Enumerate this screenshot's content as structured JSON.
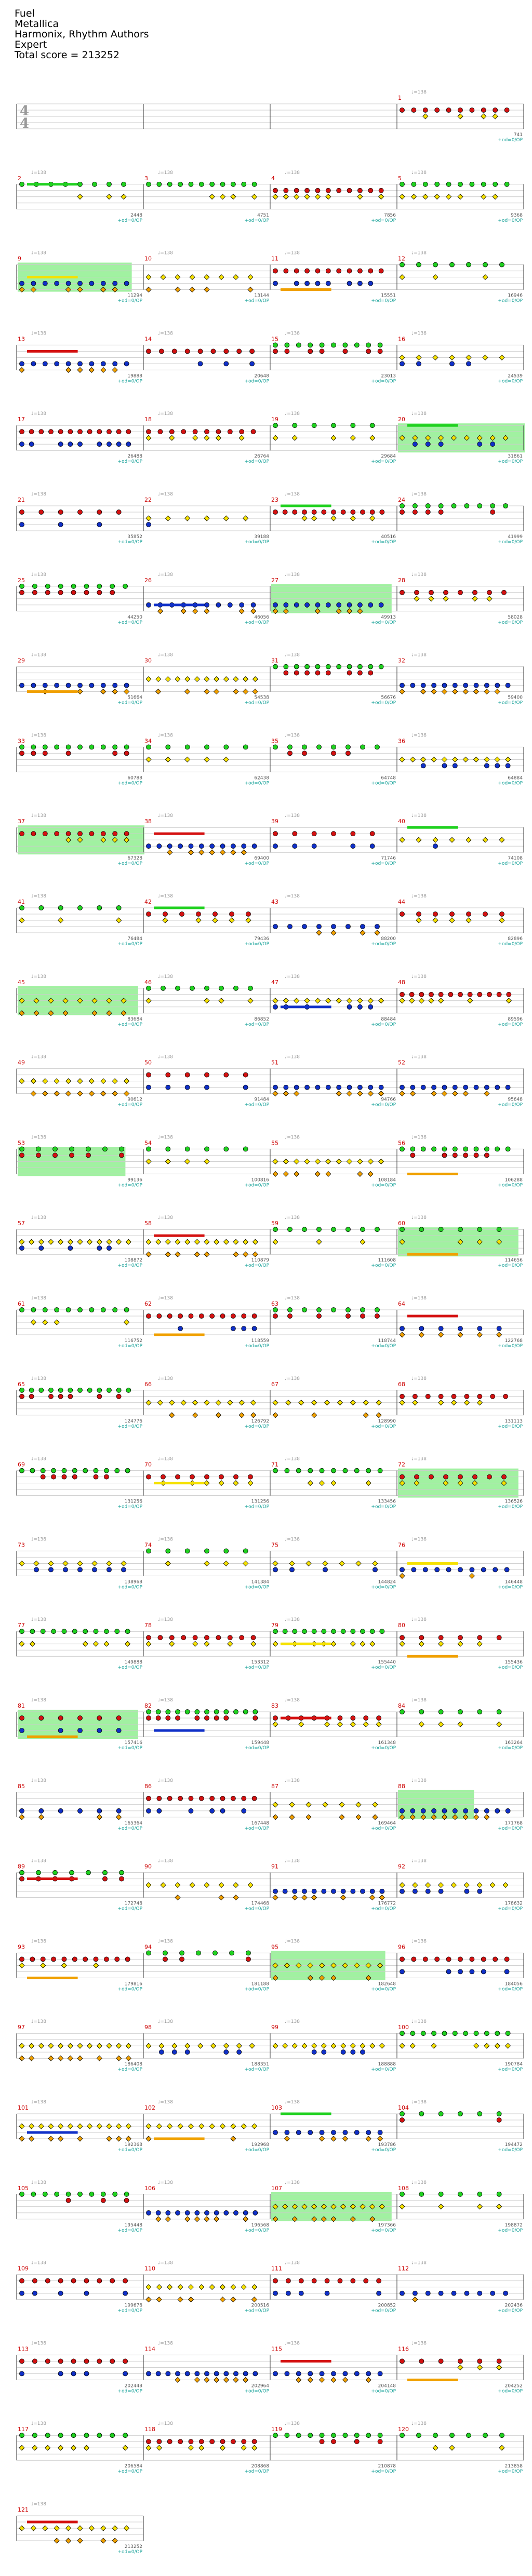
{
  "header": {
    "title": "Fuel",
    "artist": "Metallica",
    "charters": "Harmonix, Rhythm Authors",
    "difficulty": "Expert",
    "total_score": "Total score = 213252"
  },
  "labels": {
    "od_label": "+od=0/OP",
    "time_signature": [
      "4",
      "4"
    ],
    "tempo_prefix": "♩="
  },
  "colors": {
    "green": "#1fd11f",
    "red": "#d41111",
    "yellow": "#f5e100",
    "blue": "#1030c8",
    "orange": "#f0a000",
    "overdrive_fill": "#90ee90",
    "lane_line": "#cccccc",
    "bar_line": "#333333"
  },
  "tempo": "♩=138",
  "chart_data": {
    "type": "table",
    "rows": [
      {
        "measures": [
          null,
          null,
          null,
          "1"
        ],
        "scores": [
          "",
          "",
          "",
          "741"
        ],
        "od": [
          false,
          false,
          false,
          true
        ],
        "tempo": [
          "138",
          "138",
          "138",
          "138"
        ],
        "overdrive": []
      },
      {
        "measures": [
          "2",
          "3",
          "4",
          "5"
        ],
        "scores": [
          "2448",
          "4751",
          "7856",
          "9368"
        ],
        "od": [
          true,
          true,
          true,
          true
        ],
        "tempo": [
          "138",
          "138",
          "138",
          "138"
        ],
        "overdrive": []
      },
      {
        "measures": [
          "9",
          "10",
          "11",
          "12"
        ],
        "scores": [
          "11294",
          "13144",
          "15551",
          "16946"
        ],
        "od": [
          true,
          true,
          true,
          true
        ],
        "tempo": [
          "138",
          "138",
          "138",
          "138"
        ],
        "overdrive": [
          [
            0,
            0.9
          ]
        ]
      },
      {
        "measures": [
          "13",
          "14",
          "15",
          "16"
        ],
        "scores": [
          "19888",
          "20648",
          "23013",
          "24539"
        ],
        "od": [
          true,
          true,
          true,
          true
        ],
        "tempo": [
          "138",
          "138",
          "138",
          "138"
        ],
        "overdrive": []
      },
      {
        "measures": [
          "17",
          "18",
          "19",
          "20"
        ],
        "scores": [
          "26488",
          "26764",
          "29684",
          "31861"
        ],
        "od": [
          true,
          true,
          true,
          true
        ],
        "tempo": [
          "138",
          "138",
          "138",
          "138"
        ],
        "overdrive": [
          [
            3,
            1.0
          ]
        ]
      },
      {
        "measures": [
          "21",
          "22",
          "23",
          "24"
        ],
        "scores": [
          "35852",
          "39188",
          "40516",
          "41999"
        ],
        "od": [
          true,
          true,
          true,
          true
        ],
        "tempo": [
          "138",
          "138",
          "138",
          "138"
        ],
        "overdrive": []
      },
      {
        "measures": [
          "25",
          "26",
          "27",
          "28"
        ],
        "scores": [
          "44250",
          "46056",
          "49913",
          "58028"
        ],
        "od": [
          true,
          true,
          true,
          true
        ],
        "tempo": [
          "138",
          "138",
          "138",
          "138"
        ],
        "overdrive": [
          [
            2,
            0.95
          ]
        ]
      },
      {
        "measures": [
          "29",
          "30",
          "31",
          "32"
        ],
        "scores": [
          "51664",
          "54538",
          "56676",
          "59400"
        ],
        "od": [
          true,
          true,
          true,
          true
        ],
        "tempo": [
          "138",
          "138",
          "138",
          "138"
        ],
        "overdrive": []
      },
      {
        "measures": [
          "33",
          "34",
          "35",
          "36"
        ],
        "scores": [
          "60788",
          "62438",
          "64748",
          "64884"
        ],
        "od": [
          true,
          true,
          true,
          true
        ],
        "tempo": [
          "138",
          "138",
          "138",
          "138"
        ],
        "overdrive": []
      },
      {
        "measures": [
          "37",
          "38",
          "39",
          "40"
        ],
        "scores": [
          "67328",
          "69400",
          "71746",
          "74108"
        ],
        "od": [
          true,
          true,
          true,
          true
        ],
        "tempo": [
          "138",
          "138",
          "138",
          "138"
        ],
        "overdrive": [
          [
            0,
            1.0
          ]
        ]
      },
      {
        "measures": [
          "41",
          "42",
          "43",
          "44"
        ],
        "scores": [
          "76484",
          "79436",
          "88200",
          "82896"
        ],
        "od": [
          true,
          true,
          true,
          true
        ],
        "tempo": [
          "138",
          "138",
          "138",
          "138"
        ],
        "overdrive": []
      },
      {
        "measures": [
          "45",
          "46",
          "47",
          "48"
        ],
        "scores": [
          "83684",
          "86852",
          "88484",
          "89596"
        ],
        "od": [
          true,
          true,
          true,
          true
        ],
        "tempo": [
          "138",
          "138",
          "138",
          "138"
        ],
        "overdrive": [
          [
            0,
            0.95
          ]
        ]
      },
      {
        "measures": [
          "49",
          "50",
          "51",
          "52"
        ],
        "scores": [
          "90612",
          "91484",
          "94766",
          "95648"
        ],
        "od": [
          true,
          true,
          true,
          true
        ],
        "tempo": [
          "138",
          "138",
          "138",
          "138"
        ],
        "overdrive": []
      },
      {
        "measures": [
          "53",
          "54",
          "55",
          "56"
        ],
        "scores": [
          "99136",
          "100816",
          "108184",
          "106288"
        ],
        "od": [
          true,
          true,
          true,
          true
        ],
        "tempo": [
          "138",
          "138",
          "138",
          "138"
        ],
        "overdrive": [
          [
            0,
            0.85
          ]
        ]
      },
      {
        "measures": [
          "57",
          "58",
          "59",
          "60"
        ],
        "scores": [
          "108872",
          "110879",
          "111608",
          "114656"
        ],
        "od": [
          true,
          true,
          true,
          true
        ],
        "tempo": [
          "138",
          "138",
          "138",
          "138"
        ],
        "overdrive": [
          [
            3,
            0.95
          ]
        ]
      },
      {
        "measures": [
          "61",
          "62",
          "63",
          "64"
        ],
        "scores": [
          "116752",
          "118559",
          "118744",
          "122768"
        ],
        "od": [
          true,
          true,
          true,
          true
        ],
        "tempo": [
          "138",
          "138",
          "138",
          "138"
        ],
        "overdrive": []
      },
      {
        "measures": [
          "65",
          "66",
          "67",
          "68"
        ],
        "scores": [
          "124776",
          "126792",
          "128990",
          "131113"
        ],
        "od": [
          true,
          true,
          true,
          true
        ],
        "tempo": [
          "138",
          "138",
          "138",
          "138"
        ],
        "overdrive": []
      },
      {
        "measures": [
          "69",
          "70",
          "71",
          "72"
        ],
        "scores": [
          "131256",
          "131256",
          "133456",
          "136526"
        ],
        "od": [
          true,
          true,
          true,
          true
        ],
        "tempo": [
          "138",
          "138",
          "138",
          "138"
        ],
        "overdrive": [
          [
            3,
            0.95
          ]
        ]
      },
      {
        "measures": [
          "73",
          "74",
          "75",
          "76"
        ],
        "scores": [
          "138968",
          "141384",
          "144824",
          "146448"
        ],
        "od": [
          true,
          true,
          true,
          true
        ],
        "tempo": [
          "138",
          "138",
          "138",
          "138"
        ],
        "overdrive": []
      },
      {
        "measures": [
          "77",
          "78",
          "79",
          "80"
        ],
        "scores": [
          "149888",
          "153312",
          "155440",
          "155436"
        ],
        "od": [
          true,
          true,
          true,
          true
        ],
        "tempo": [
          "138",
          "138",
          "138",
          "138"
        ],
        "overdrive": []
      },
      {
        "measures": [
          "81",
          "82",
          "83",
          "84"
        ],
        "scores": [
          "157416",
          "159448",
          "161348",
          "163264"
        ],
        "od": [
          true,
          true,
          true,
          true
        ],
        "tempo": [
          "138",
          "138",
          "138",
          "138"
        ],
        "overdrive": [
          [
            0,
            0.95
          ]
        ]
      },
      {
        "measures": [
          "85",
          "86",
          "87",
          "88"
        ],
        "scores": [
          "165364",
          "167448",
          "169464",
          "171768"
        ],
        "od": [
          true,
          true,
          true,
          true
        ],
        "tempo": [
          "138",
          "138",
          "138",
          "138"
        ],
        "overdrive": [
          [
            3,
            0.6
          ]
        ]
      },
      {
        "measures": [
          "89",
          "90",
          "91",
          "92"
        ],
        "scores": [
          "172748",
          "174468",
          "176772",
          "178632"
        ],
        "od": [
          true,
          true,
          true,
          true
        ],
        "tempo": [
          "138",
          "138",
          "138",
          "138"
        ],
        "overdrive": []
      },
      {
        "measures": [
          "93",
          "94",
          "95",
          "96"
        ],
        "scores": [
          "179816",
          "181188",
          "182648",
          "184056"
        ],
        "od": [
          true,
          true,
          true,
          true
        ],
        "tempo": [
          "138",
          "138",
          "138",
          "138"
        ],
        "overdrive": [
          [
            2,
            0.9
          ]
        ]
      },
      {
        "measures": [
          "97",
          "98",
          "99",
          "100"
        ],
        "scores": [
          "186408",
          "188351",
          "188888",
          "190784"
        ],
        "od": [
          true,
          true,
          true,
          true
        ],
        "tempo": [
          "138",
          "138",
          "138",
          "138"
        ],
        "overdrive": []
      },
      {
        "measures": [
          "101",
          "102",
          "103",
          "104"
        ],
        "scores": [
          "192368",
          "192968",
          "193786",
          "194472"
        ],
        "od": [
          true,
          true,
          true,
          true
        ],
        "tempo": [
          "138",
          "138",
          "138",
          "138"
        ],
        "overdrive": []
      },
      {
        "measures": [
          "105",
          "106",
          "107",
          "108"
        ],
        "scores": [
          "195448",
          "196568",
          "197366",
          "198872"
        ],
        "od": [
          true,
          true,
          true,
          true
        ],
        "tempo": [
          "138",
          "138",
          "138",
          "138"
        ],
        "overdrive": [
          [
            2,
            0.95
          ]
        ]
      },
      {
        "measures": [
          "109",
          "110",
          "111",
          "112"
        ],
        "scores": [
          "199678",
          "200516",
          "200852",
          "202436"
        ],
        "od": [
          true,
          true,
          true,
          true
        ],
        "tempo": [
          "138",
          "138",
          "138",
          "138"
        ],
        "overdrive": []
      },
      {
        "measures": [
          "113",
          "114",
          "115",
          "116"
        ],
        "scores": [
          "202448",
          "202964",
          "204148",
          "204252"
        ],
        "od": [
          true,
          true,
          true,
          true
        ],
        "tempo": [
          "138",
          "138",
          "138",
          "138"
        ],
        "overdrive": []
      },
      {
        "measures": [
          "117",
          "118",
          "119",
          "120"
        ],
        "scores": [
          "206584",
          "208868",
          "210878",
          "213858"
        ],
        "od": [
          true,
          true,
          true,
          true
        ],
        "tempo": [
          "138",
          "138",
          "138",
          "138"
        ],
        "overdrive": []
      },
      {
        "measures": [
          "121",
          null,
          null,
          null
        ],
        "scores": [
          "213252",
          "",
          "",
          ""
        ],
        "od": [
          true,
          false,
          false,
          false
        ],
        "tempo": [
          "138",
          "",
          "",
          ""
        ],
        "overdrive": []
      }
    ]
  }
}
